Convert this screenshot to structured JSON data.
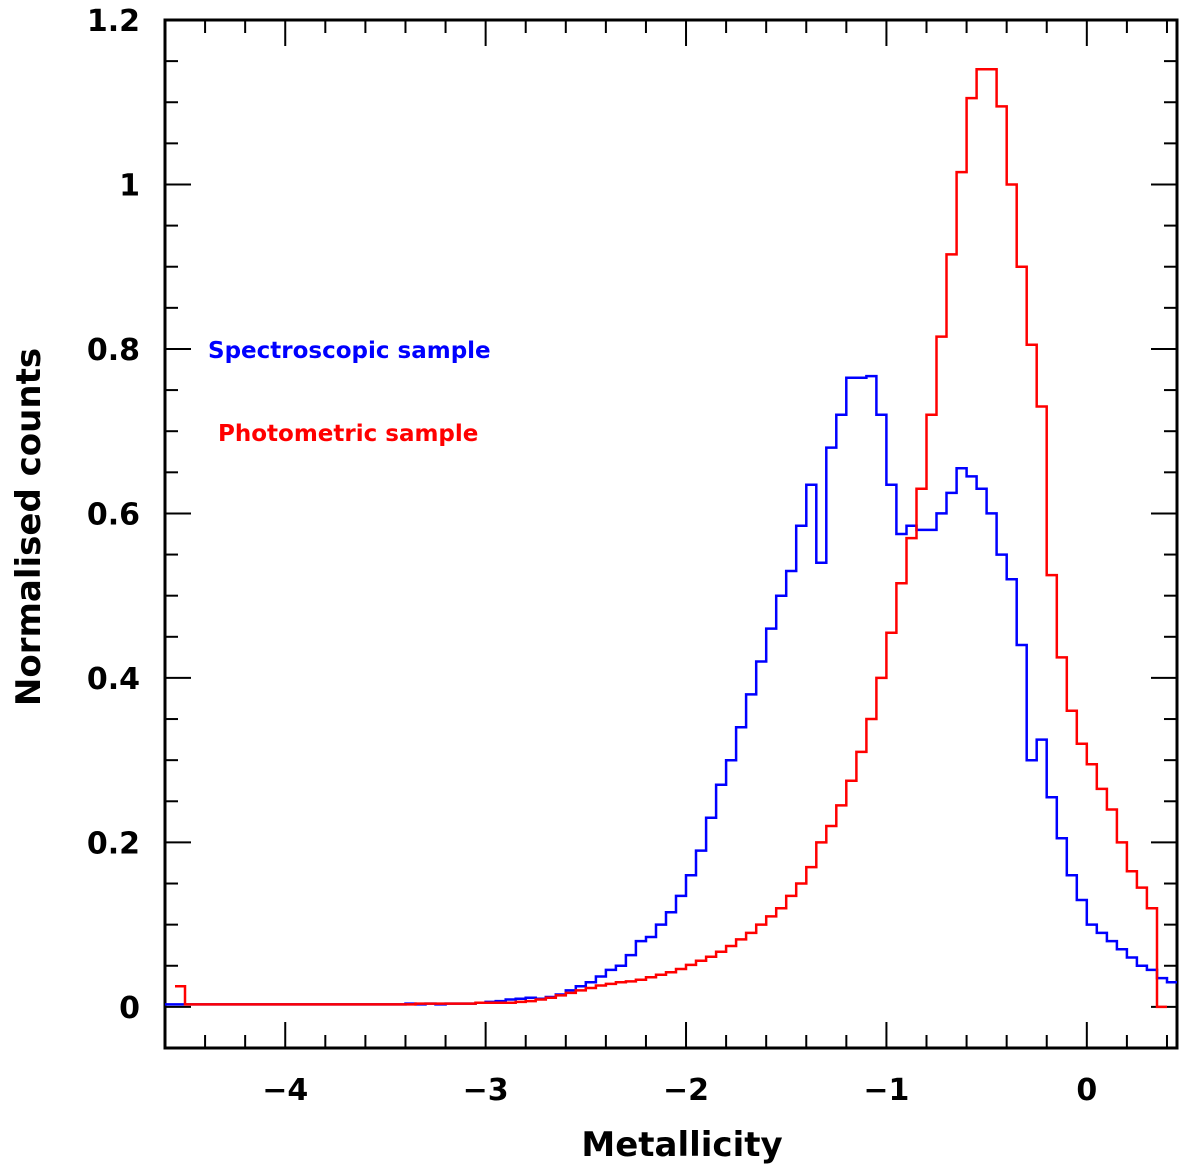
{
  "chart_data": {
    "type": "line",
    "style": "step-histogram",
    "title": "",
    "xlabel": "Metallicity",
    "ylabel": "Normalised counts",
    "xlim": [
      -4.6,
      0.45
    ],
    "ylim": [
      -0.05,
      1.2
    ],
    "xticks": [
      -4,
      -3,
      -2,
      -1,
      0
    ],
    "xtick_labels": [
      "−4",
      "−3",
      "−2",
      "−1",
      "0"
    ],
    "yticks": [
      0,
      0.2,
      0.4,
      0.6,
      0.8,
      1,
      1.2
    ],
    "ytick_labels": [
      "0",
      "0.2",
      "0.4",
      "0.6",
      "0.8",
      "1",
      "1.2"
    ],
    "bin_width": 0.05,
    "series": [
      {
        "name": "Spectroscopic sample",
        "color": "#0000ff",
        "x_start": -4.6,
        "values": [
          0.003,
          0.003,
          0.003,
          0.003,
          0.003,
          0.003,
          0.003,
          0.003,
          0.003,
          0.003,
          0.003,
          0.003,
          0.003,
          0.003,
          0.003,
          0.003,
          0.003,
          0.003,
          0.003,
          0.003,
          0.003,
          0.003,
          0.003,
          0.003,
          0.004,
          0.003,
          0.004,
          0.003,
          0.004,
          0.004,
          0.004,
          0.005,
          0.006,
          0.007,
          0.009,
          0.01,
          0.011,
          0.01,
          0.012,
          0.015,
          0.02,
          0.025,
          0.03,
          0.037,
          0.045,
          0.05,
          0.063,
          0.08,
          0.085,
          0.1,
          0.115,
          0.135,
          0.16,
          0.19,
          0.23,
          0.27,
          0.3,
          0.34,
          0.38,
          0.42,
          0.46,
          0.5,
          0.53,
          0.585,
          0.635,
          0.54,
          0.68,
          0.72,
          0.765,
          0.765,
          0.767,
          0.72,
          0.635,
          0.575,
          0.585,
          0.58,
          0.58,
          0.6,
          0.625,
          0.655,
          0.645,
          0.63,
          0.6,
          0.55,
          0.52,
          0.44,
          0.3,
          0.325,
          0.255,
          0.205,
          0.16,
          0.13,
          0.1,
          0.09,
          0.08,
          0.07,
          0.06,
          0.05,
          0.045,
          0.035,
          0.03
        ]
      },
      {
        "name": "Photometric sample",
        "color": "#ff0000",
        "x_start": -4.55,
        "values": [
          0.025,
          0.003,
          0.003,
          0.003,
          0.003,
          0.003,
          0.003,
          0.003,
          0.003,
          0.003,
          0.003,
          0.003,
          0.003,
          0.003,
          0.003,
          0.003,
          0.003,
          0.003,
          0.003,
          0.003,
          0.003,
          0.003,
          0.003,
          0.003,
          0.004,
          0.004,
          0.004,
          0.004,
          0.004,
          0.004,
          0.005,
          0.005,
          0.005,
          0.005,
          0.006,
          0.007,
          0.009,
          0.011,
          0.014,
          0.017,
          0.02,
          0.023,
          0.026,
          0.028,
          0.03,
          0.031,
          0.033,
          0.036,
          0.039,
          0.042,
          0.046,
          0.051,
          0.056,
          0.061,
          0.067,
          0.074,
          0.082,
          0.09,
          0.1,
          0.11,
          0.12,
          0.135,
          0.15,
          0.17,
          0.2,
          0.22,
          0.245,
          0.275,
          0.31,
          0.35,
          0.4,
          0.455,
          0.515,
          0.57,
          0.63,
          0.72,
          0.815,
          0.915,
          1.015,
          1.105,
          1.14,
          1.14,
          1.095,
          1.0,
          0.9,
          0.805,
          0.73,
          0.525,
          0.425,
          0.36,
          0.32,
          0.295,
          0.265,
          0.24,
          0.2,
          0.165,
          0.145,
          0.12,
          0.0
        ]
      }
    ]
  }
}
